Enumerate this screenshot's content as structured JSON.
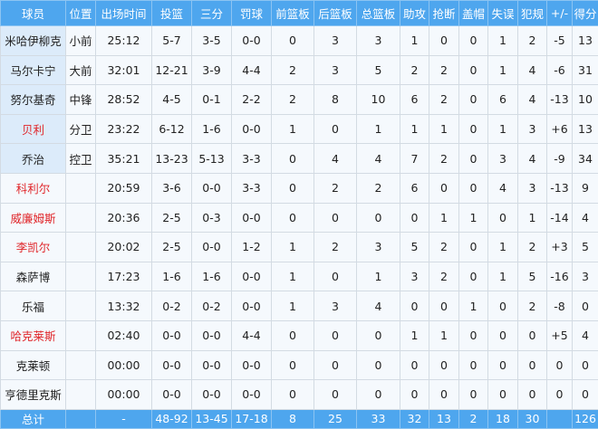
{
  "headers": [
    "球员",
    "位置",
    "出场时间",
    "投篮",
    "三分",
    "罚球",
    "前篮板",
    "后篮板",
    "总篮板",
    "助攻",
    "抢断",
    "盖帽",
    "失误",
    "犯规",
    "+/-",
    "得分"
  ],
  "highlight_color": "#e0262a",
  "header_color": "#4ea6ee",
  "rows": [
    {
      "starter": true,
      "highlight": false,
      "cells": [
        "米哈伊柳克",
        "小前",
        "25:12",
        "5-7",
        "3-5",
        "0-0",
        "0",
        "3",
        "3",
        "1",
        "0",
        "0",
        "1",
        "2",
        "-5",
        "13"
      ]
    },
    {
      "starter": true,
      "highlight": false,
      "cells": [
        "马尔卡宁",
        "大前",
        "32:01",
        "12-21",
        "3-9",
        "4-4",
        "2",
        "3",
        "5",
        "2",
        "2",
        "0",
        "1",
        "4",
        "-6",
        "31"
      ]
    },
    {
      "starter": true,
      "highlight": false,
      "cells": [
        "努尔基奇",
        "中锋",
        "28:52",
        "4-5",
        "0-1",
        "2-2",
        "2",
        "8",
        "10",
        "6",
        "2",
        "0",
        "6",
        "4",
        "-13",
        "10"
      ]
    },
    {
      "starter": true,
      "highlight": true,
      "cells": [
        "贝利",
        "分卫",
        "23:22",
        "6-12",
        "1-6",
        "0-0",
        "1",
        "0",
        "1",
        "1",
        "1",
        "0",
        "1",
        "3",
        "+6",
        "13"
      ]
    },
    {
      "starter": true,
      "highlight": false,
      "cells": [
        "乔治",
        "控卫",
        "35:21",
        "13-23",
        "5-13",
        "3-3",
        "0",
        "4",
        "4",
        "7",
        "2",
        "0",
        "3",
        "4",
        "-9",
        "34"
      ]
    },
    {
      "starter": false,
      "highlight": true,
      "cells": [
        "科利尔",
        "",
        "20:59",
        "3-6",
        "0-0",
        "3-3",
        "0",
        "2",
        "2",
        "6",
        "0",
        "0",
        "4",
        "3",
        "-13",
        "9"
      ]
    },
    {
      "starter": false,
      "highlight": true,
      "cells": [
        "威廉姆斯",
        "",
        "20:36",
        "2-5",
        "0-3",
        "0-0",
        "0",
        "0",
        "0",
        "0",
        "1",
        "1",
        "0",
        "1",
        "-14",
        "4"
      ]
    },
    {
      "starter": false,
      "highlight": true,
      "cells": [
        "李凯尔",
        "",
        "20:02",
        "2-5",
        "0-0",
        "1-2",
        "1",
        "2",
        "3",
        "5",
        "2",
        "0",
        "1",
        "2",
        "+3",
        "5"
      ]
    },
    {
      "starter": false,
      "highlight": false,
      "cells": [
        "森萨博",
        "",
        "17:23",
        "1-6",
        "1-6",
        "0-0",
        "1",
        "0",
        "1",
        "3",
        "2",
        "0",
        "1",
        "5",
        "-16",
        "3"
      ]
    },
    {
      "starter": false,
      "highlight": false,
      "cells": [
        "乐福",
        "",
        "13:32",
        "0-2",
        "0-2",
        "0-0",
        "1",
        "3",
        "4",
        "0",
        "0",
        "1",
        "0",
        "2",
        "-8",
        "0"
      ]
    },
    {
      "starter": false,
      "highlight": true,
      "cells": [
        "哈克莱斯",
        "",
        "02:40",
        "0-0",
        "0-0",
        "4-4",
        "0",
        "0",
        "0",
        "1",
        "1",
        "0",
        "0",
        "0",
        "+5",
        "4"
      ]
    },
    {
      "starter": false,
      "highlight": false,
      "cells": [
        "克莱顿",
        "",
        "00:00",
        "0-0",
        "0-0",
        "0-0",
        "0",
        "0",
        "0",
        "0",
        "0",
        "0",
        "0",
        "0",
        "0",
        "0"
      ]
    },
    {
      "starter": false,
      "highlight": false,
      "cells": [
        "亨德里克斯",
        "",
        "00:00",
        "0-0",
        "0-0",
        "0-0",
        "0",
        "0",
        "0",
        "0",
        "0",
        "0",
        "0",
        "0",
        "0",
        "0"
      ]
    }
  ],
  "totals": [
    "总计",
    "",
    "-",
    "48-92",
    "13-45",
    "17-18",
    "8",
    "25",
    "33",
    "32",
    "13",
    "2",
    "18",
    "30",
    "",
    "126"
  ]
}
